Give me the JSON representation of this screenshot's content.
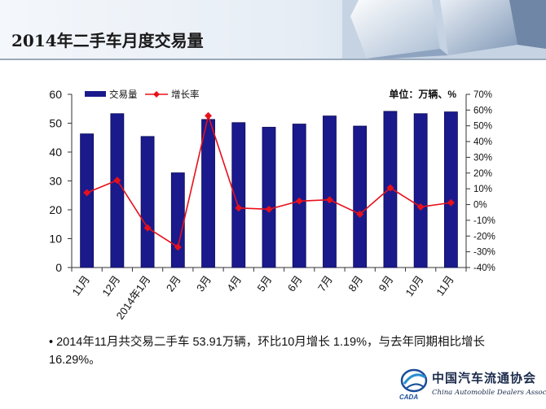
{
  "page": {
    "title": "2014年二手车月度交易量"
  },
  "chart_data": {
    "type": "bar",
    "categories": [
      "11月",
      "12月",
      "2014年1月",
      "2月",
      "3月",
      "4月",
      "5月",
      "6月",
      "7月",
      "8月",
      "9月",
      "10月",
      "11月"
    ],
    "series": [
      {
        "name": "交易量",
        "type": "bar",
        "axis": "left",
        "color": "#1a1a8c",
        "values": [
          46.3,
          53.3,
          45.4,
          32.8,
          51.3,
          50.2,
          48.6,
          49.7,
          52.5,
          49.0,
          54.1,
          53.3,
          53.91
        ]
      },
      {
        "name": "增长率",
        "type": "line",
        "axis": "right",
        "color": "#e8101a",
        "values": [
          7.5,
          15.4,
          -14.8,
          -27.0,
          56.4,
          -2.2,
          -3.0,
          2.2,
          3.0,
          -6.1,
          10.6,
          -1.5,
          1.19
        ]
      }
    ],
    "unit_label": "单位：万辆、%",
    "y_left": {
      "min": 0,
      "max": 60,
      "step": 10,
      "ticks": [
        "0",
        "10",
        "20",
        "30",
        "40",
        "50",
        "60"
      ]
    },
    "y_right": {
      "min": -40,
      "max": 70,
      "step": 10,
      "ticks": [
        "-40%",
        "-30%",
        "-20%",
        "-10%",
        "0%",
        "10%",
        "20%",
        "30%",
        "40%",
        "50%",
        "60%",
        "70%"
      ]
    },
    "legend_position": "top-left",
    "grid": false
  },
  "note": {
    "bullet": "•",
    "text": "2014年11月共交易二手车 53.91万辆，环比10月增长 1.19%，与去年同期相比增长 16.29%。"
  },
  "logo": {
    "cn": "中国汽车流通协会",
    "en": "China Automobile Dealers Association",
    "abbr": "CADA"
  }
}
